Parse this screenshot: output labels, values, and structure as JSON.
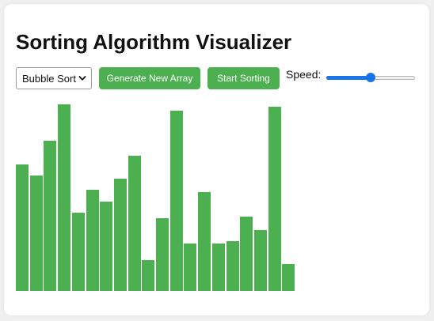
{
  "title": "Sorting Algorithm Visualizer",
  "controls": {
    "algorithm_selected": "Bubble Sort",
    "generate_label": "Generate New Array",
    "start_label": "Start Sorting",
    "speed_label": "Speed:",
    "speed_value_fraction": 0.5
  },
  "colors": {
    "bar": "#4caf50",
    "button": "#4caf50",
    "slider_accent": "#1a73e8"
  },
  "array": [
    160,
    146,
    190,
    236,
    99,
    128,
    113,
    142,
    171,
    39,
    92,
    228,
    60,
    125,
    60,
    63,
    94,
    77,
    233,
    34
  ]
}
